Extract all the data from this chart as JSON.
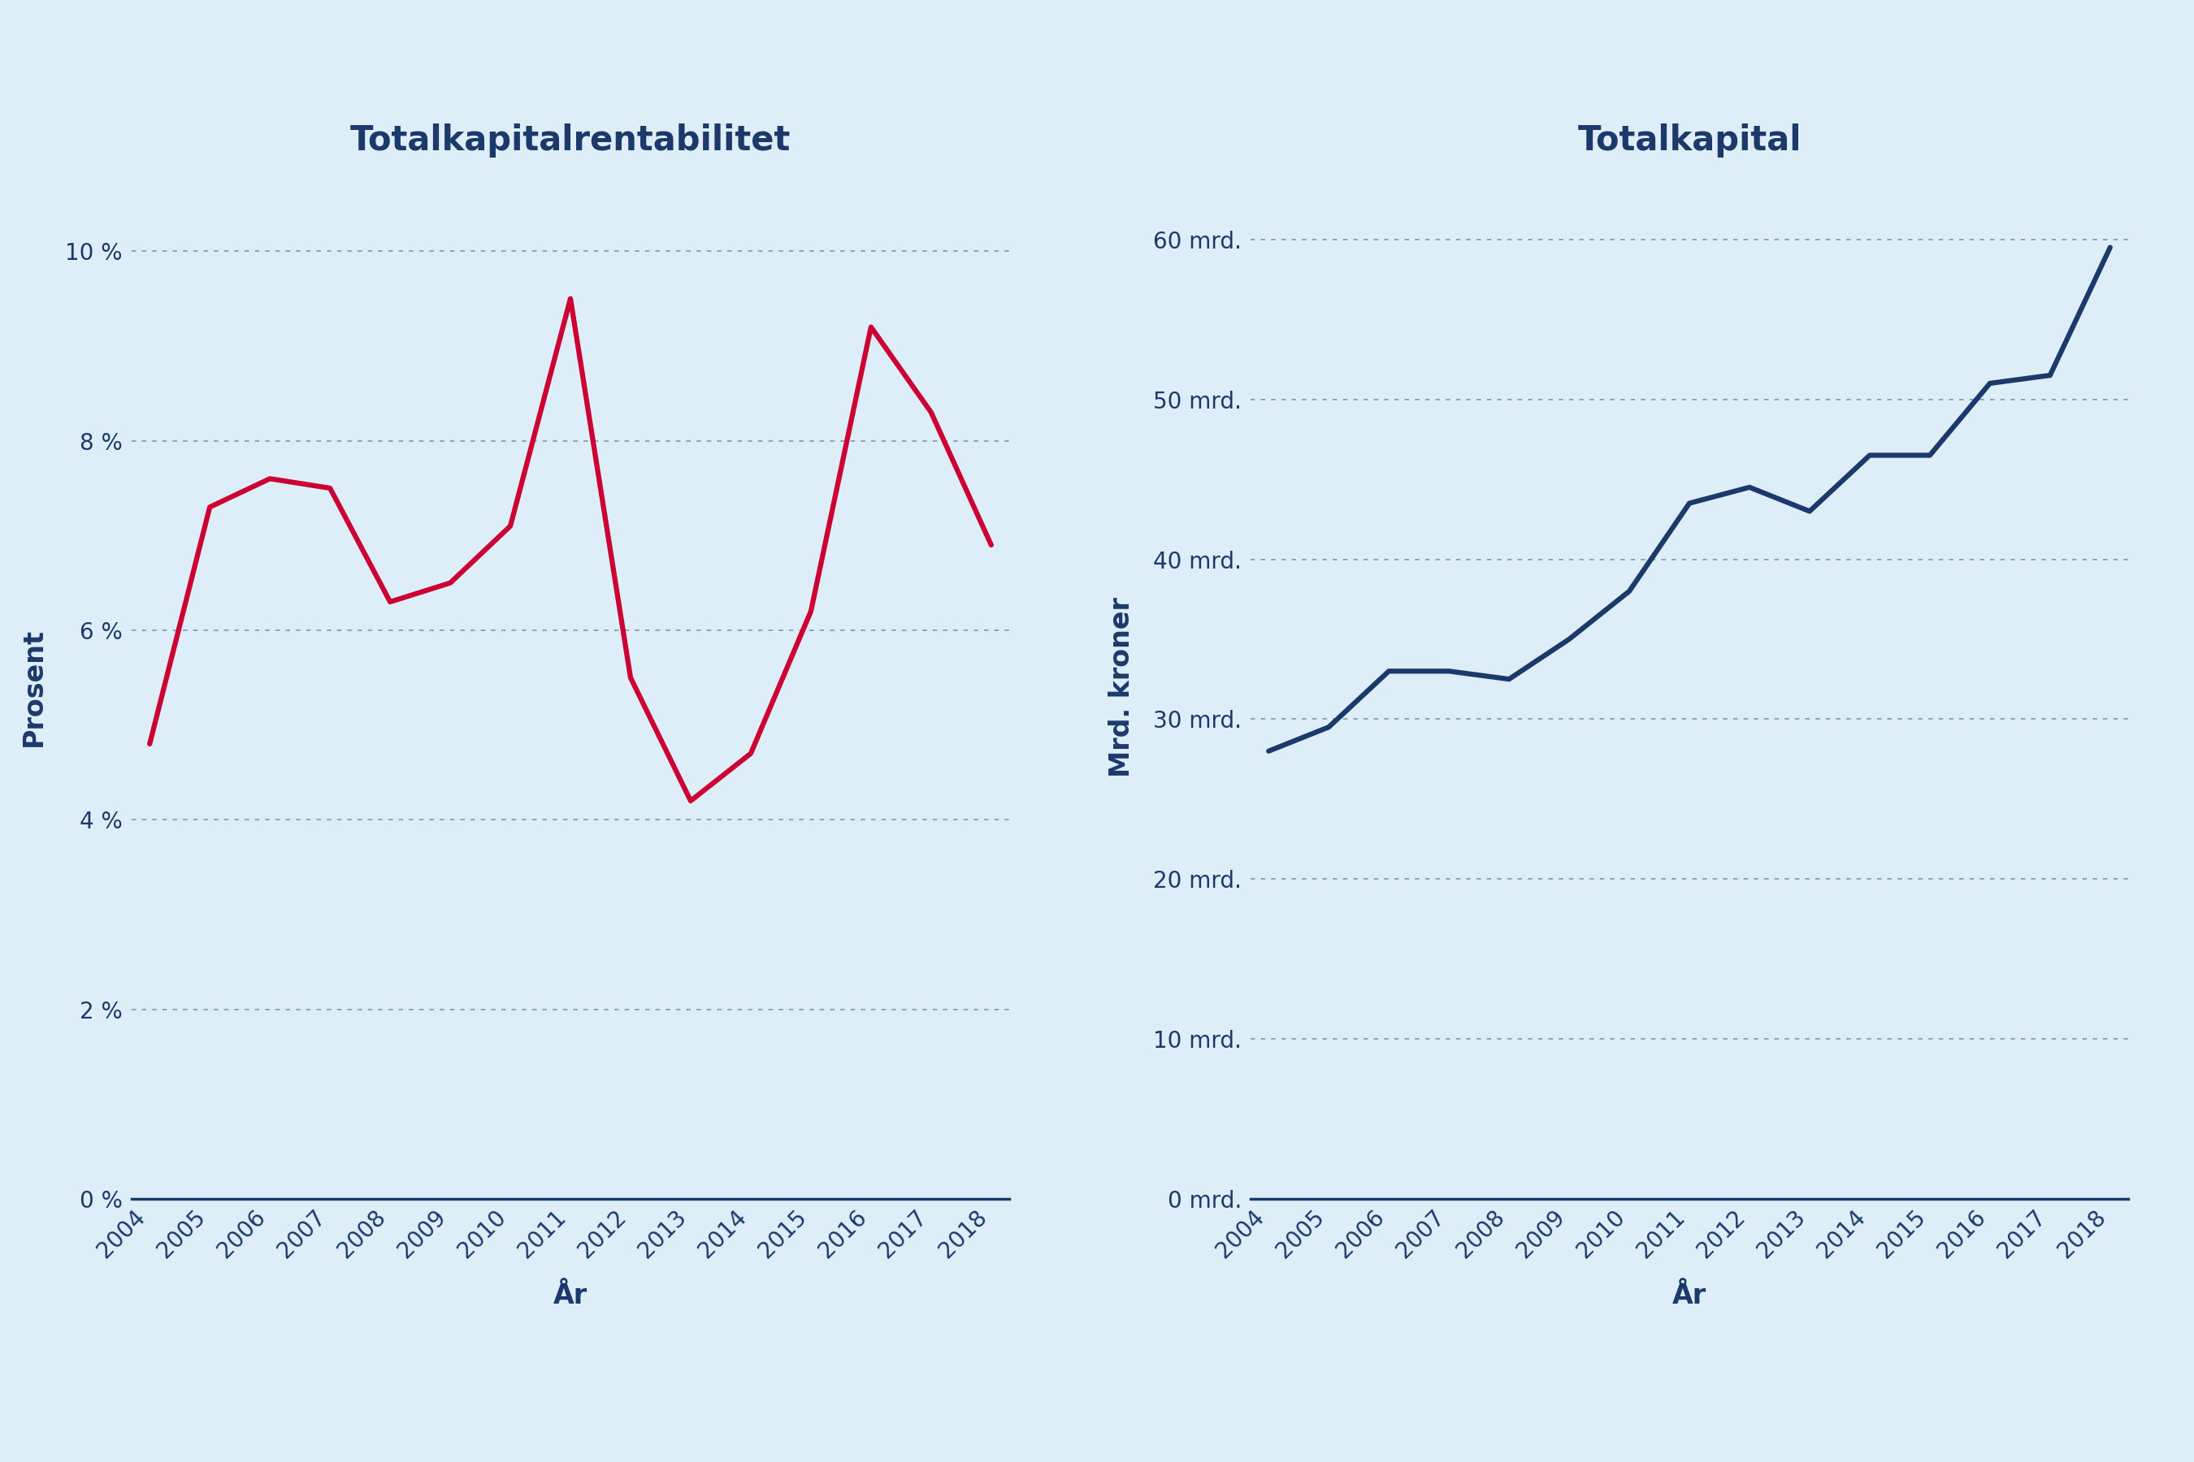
{
  "years": [
    2004,
    2005,
    2006,
    2007,
    2008,
    2009,
    2010,
    2011,
    2012,
    2013,
    2014,
    2015,
    2016,
    2017,
    2018
  ],
  "rentabilitet": [
    4.8,
    7.3,
    7.6,
    7.5,
    6.3,
    6.5,
    7.1,
    9.5,
    5.5,
    4.2,
    4.7,
    6.2,
    9.2,
    8.3,
    6.9
  ],
  "totalkapital": [
    28,
    29.5,
    33,
    33,
    32.5,
    35,
    38,
    43.5,
    44.5,
    43,
    46.5,
    46.5,
    51,
    51.5,
    59.5
  ],
  "title1": "Totalkapitalrentabilitet",
  "title2": "Totalkapital",
  "ylabel1": "Prosent",
  "ylabel2": "Mrd. kroner",
  "xlabel": "År",
  "line_color1": "#cc0033",
  "line_color2": "#1b3a6b",
  "bg_color": "#ddeef8",
  "text_color": "#1b3a6b",
  "grid_color": "#1b3a6b",
  "yticks1": [
    0,
    2,
    4,
    6,
    8,
    10
  ],
  "ytick_labels1": [
    "0 %",
    "2 %",
    "4 %",
    "6 %",
    "8 %",
    "10 %"
  ],
  "yticks2": [
    0,
    10,
    20,
    30,
    40,
    50,
    60
  ],
  "ytick_labels2": [
    "0 mrd.",
    "10 mrd.",
    "20 mrd.",
    "30 mrd.",
    "40 mrd.",
    "50 mrd.",
    "60 mrd."
  ],
  "ylim1": [
    0,
    10.8
  ],
  "ylim2": [
    0,
    64
  ],
  "title_fontsize": 30,
  "label_fontsize": 24,
  "tick_fontsize": 20,
  "line_width": 4.5
}
